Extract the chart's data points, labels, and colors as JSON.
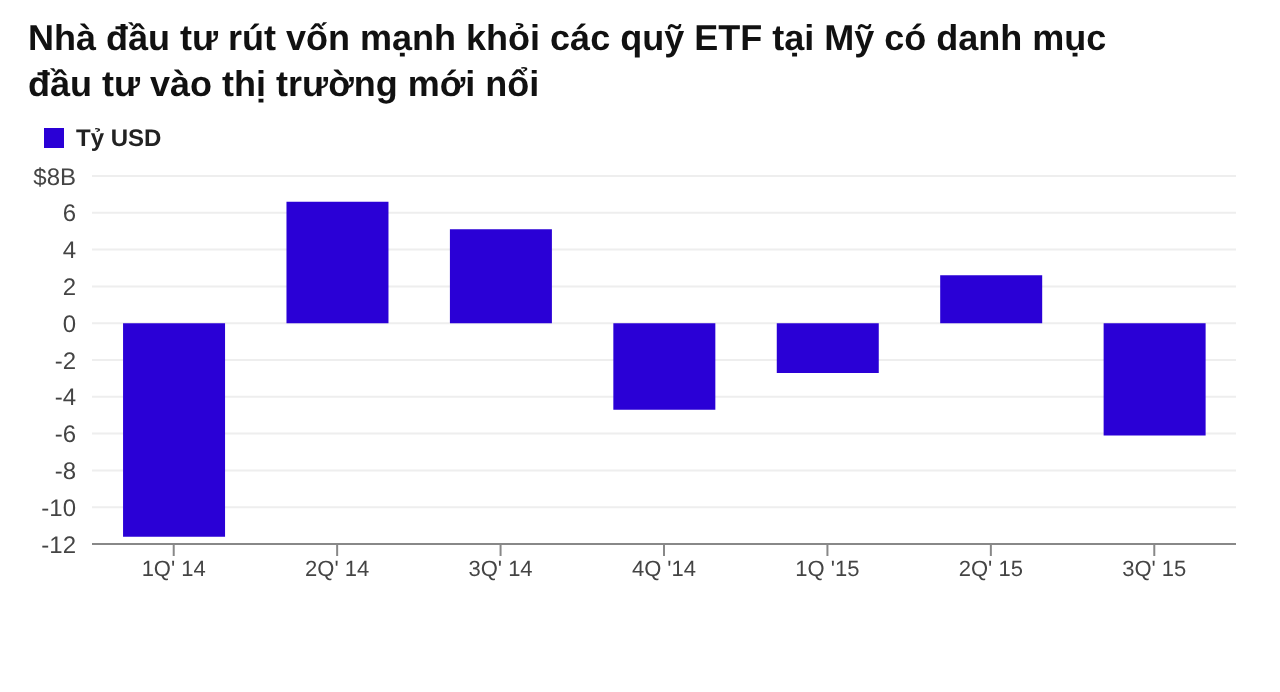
{
  "chart_data": {
    "type": "bar",
    "title": "Nhà đầu tư rút vốn mạnh khỏi các quỹ ETF tại Mỹ có danh mục đầu tư vào thị trường mới nổi",
    "categories": [
      "1Q' 14",
      "2Q' 14",
      "3Q' 14",
      "4Q '14",
      "1Q '15",
      "2Q' 15",
      "3Q' 15"
    ],
    "series": [
      {
        "name": "Tỷ USD",
        "color": "#2a00d6",
        "values": [
          -11.6,
          6.6,
          5.1,
          -4.7,
          -2.7,
          2.6,
          -6.1
        ]
      }
    ],
    "ylim": [
      -12,
      8
    ],
    "yticks": [
      -12,
      -10,
      -8,
      -6,
      -4,
      -2,
      0,
      2,
      4,
      6,
      {
        "value": 8,
        "label": "$8B"
      }
    ],
    "grid": "y",
    "legend": "top left"
  }
}
